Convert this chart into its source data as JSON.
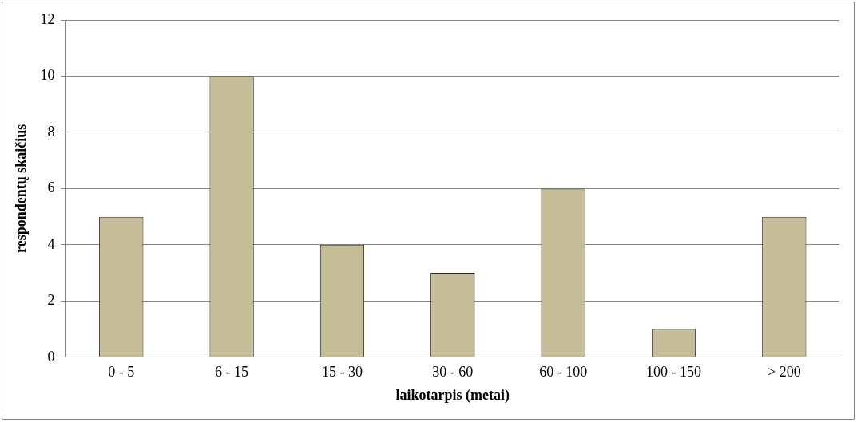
{
  "chart_data": {
    "type": "bar",
    "xlabel": "laikotarpis (metai)",
    "ylabel": "respondentų skaičius",
    "categories": [
      "0 - 5",
      "6 - 15",
      "15 - 30",
      "30 - 60",
      "60 - 100",
      "100 - 150",
      "> 200"
    ],
    "values": [
      5,
      10,
      4,
      3,
      6,
      1,
      5
    ],
    "color": "#c4bd97",
    "ylim": [
      0,
      12
    ],
    "yticks": [
      0,
      2,
      4,
      6,
      8,
      10,
      12
    ],
    "grid": "y",
    "legend": false
  }
}
